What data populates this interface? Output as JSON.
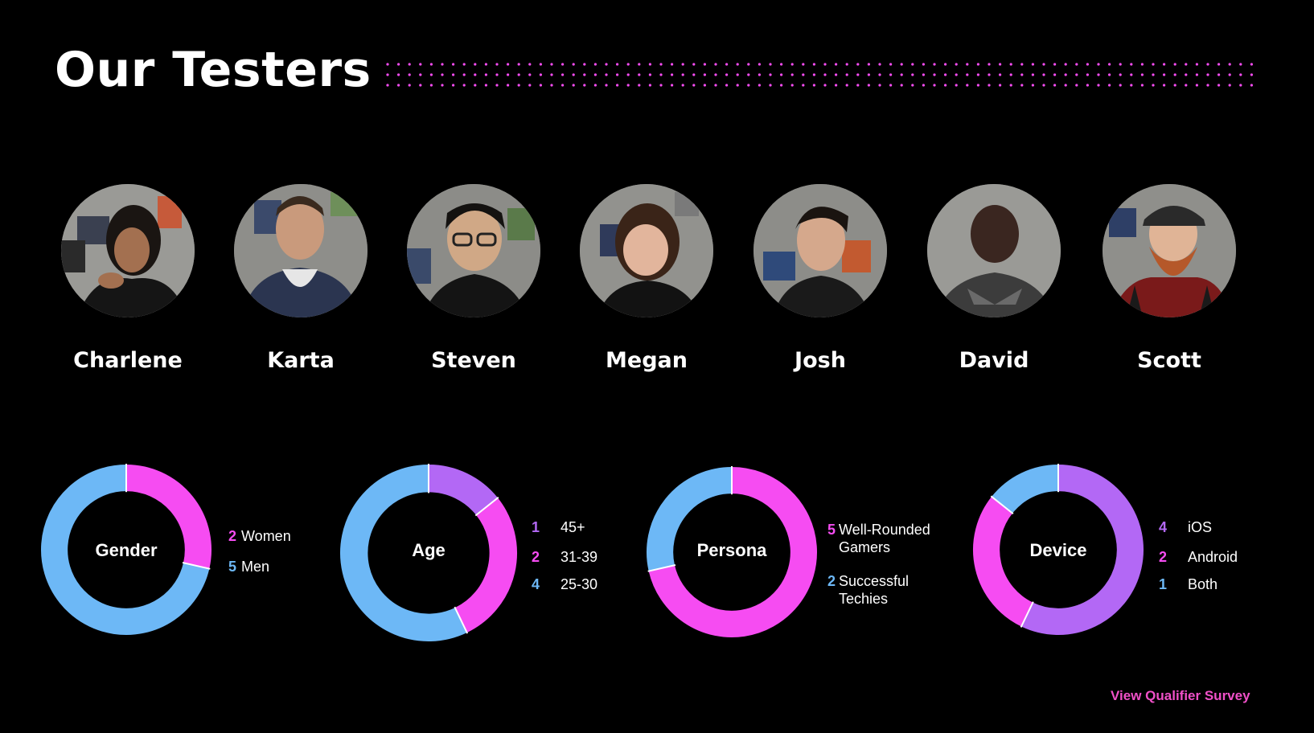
{
  "title": "Our Testers",
  "colors": {
    "pink": "#f64cf2",
    "blue": "#6db8f6",
    "purple": "#b368f5",
    "link": "#f050c8",
    "background": "#000000"
  },
  "testers": [
    {
      "name": "Charlene"
    },
    {
      "name": "Karta"
    },
    {
      "name": "Steven"
    },
    {
      "name": "Megan"
    },
    {
      "name": "Josh"
    },
    {
      "name": "David"
    },
    {
      "name": "Scott"
    }
  ],
  "chart_data": [
    {
      "type": "pie",
      "title": "Gender",
      "categories": [
        "Women",
        "Men"
      ],
      "values": [
        2,
        5
      ],
      "colors": [
        "#f64cf2",
        "#6db8f6"
      ]
    },
    {
      "type": "pie",
      "title": "Age",
      "categories": [
        "45+",
        "31-39",
        "25-30"
      ],
      "values": [
        1,
        2,
        4
      ],
      "colors": [
        "#b368f5",
        "#f64cf2",
        "#6db8f6"
      ]
    },
    {
      "type": "pie",
      "title": "Persona",
      "categories": [
        "Well-Rounded Gamers",
        "Successful Techies"
      ],
      "values": [
        5,
        2
      ],
      "colors": [
        "#f64cf2",
        "#6db8f6"
      ]
    },
    {
      "type": "pie",
      "title": "Device",
      "categories": [
        "iOS",
        "Android",
        "Both"
      ],
      "values": [
        4,
        2,
        1
      ],
      "colors": [
        "#b368f5",
        "#f64cf2",
        "#6db8f6"
      ]
    }
  ],
  "legends": {
    "gender": [
      {
        "num": "2",
        "label": "Women",
        "color": "#f64cf2"
      },
      {
        "num": "5",
        "label": "Men",
        "color": "#6db8f6"
      }
    ],
    "age": [
      {
        "num": "1",
        "label": "45+",
        "color": "#b368f5"
      },
      {
        "num": "2",
        "label": "31-39",
        "color": "#f64cf2"
      },
      {
        "num": "4",
        "label": "25-30",
        "color": "#6db8f6"
      }
    ],
    "persona": [
      {
        "num": "5",
        "label_line1": "Well-Rounded",
        "label_line2": "Gamers",
        "color": "#f64cf2"
      },
      {
        "num": "2",
        "label_line1": "Successful",
        "label_line2": "Techies",
        "color": "#6db8f6"
      }
    ],
    "device": [
      {
        "num": "4",
        "label": "iOS",
        "color": "#b368f5"
      },
      {
        "num": "2",
        "label": "Android",
        "color": "#f64cf2"
      },
      {
        "num": "1",
        "label": "Both",
        "color": "#6db8f6"
      }
    ]
  },
  "survey_link": "View Qualifier Survey"
}
